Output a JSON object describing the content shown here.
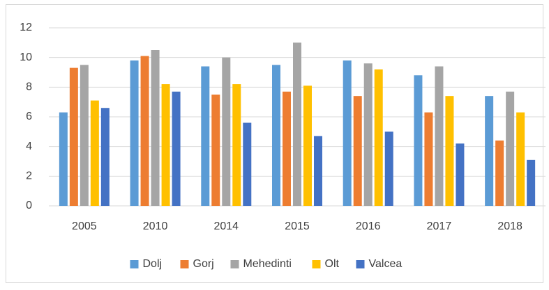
{
  "chart_data": {
    "type": "bar",
    "categories": [
      "2005",
      "2010",
      "2014",
      "2015",
      "2016",
      "2017",
      "2018"
    ],
    "series": [
      {
        "name": "Dolj",
        "color": "#5b9bd5",
        "values": [
          6.3,
          9.8,
          9.4,
          9.5,
          9.8,
          8.8,
          7.4
        ]
      },
      {
        "name": "Gorj",
        "color": "#ed7d31",
        "values": [
          9.3,
          10.1,
          7.5,
          7.7,
          7.4,
          6.3,
          4.4
        ]
      },
      {
        "name": "Mehedinti",
        "color": "#a5a5a5",
        "values": [
          9.5,
          10.5,
          10.0,
          11.0,
          9.6,
          9.4,
          7.7
        ]
      },
      {
        "name": "Olt",
        "color": "#ffc000",
        "values": [
          7.1,
          8.2,
          8.2,
          8.1,
          9.2,
          7.4,
          6.3
        ]
      },
      {
        "name": "Valcea",
        "color": "#4472c4",
        "values": [
          6.6,
          7.7,
          5.6,
          4.7,
          5.0,
          4.2,
          3.1
        ]
      }
    ],
    "ylim": [
      0,
      12
    ],
    "yticks": [
      0,
      2,
      4,
      6,
      8,
      10,
      12
    ],
    "grid": true,
    "legend": "bottom"
  }
}
